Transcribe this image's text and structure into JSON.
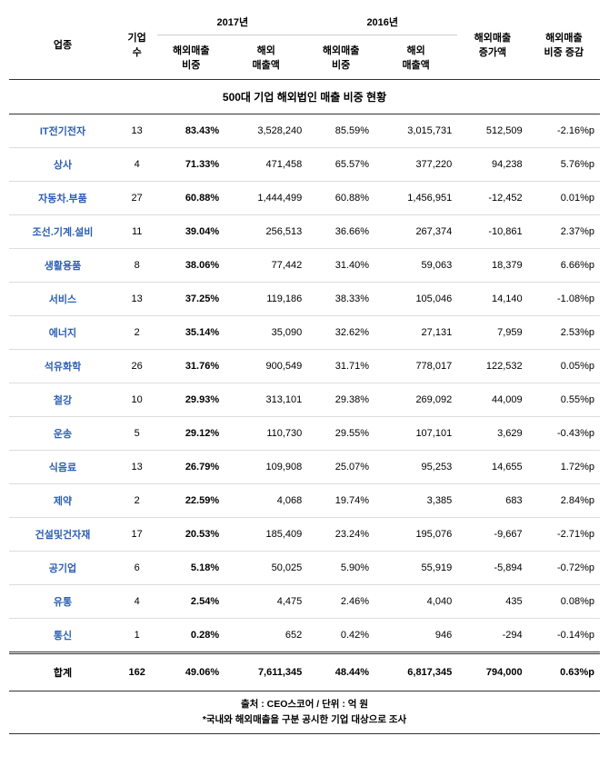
{
  "title": "500대 기업 해외법인 매출 비중 현황",
  "headers": {
    "industry": "업종",
    "count": "기업\n수",
    "y2017": "2017년",
    "y2016": "2016년",
    "overseas_ratio": "해외매출\n비중",
    "overseas_amount": "해외\n매출액",
    "increase": "해외매출\n증가액",
    "ratio_change": "해외매출\n비중 증감"
  },
  "rows": [
    {
      "industry": "IT전기전자",
      "count": "13",
      "r2017": "83.43%",
      "a2017": "3,528,240",
      "r2016": "85.59%",
      "a2016": "3,015,731",
      "inc": "512,509",
      "chg": "-2.16%p"
    },
    {
      "industry": "상사",
      "count": "4",
      "r2017": "71.33%",
      "a2017": "471,458",
      "r2016": "65.57%",
      "a2016": "377,220",
      "inc": "94,238",
      "chg": "5.76%p"
    },
    {
      "industry": "자동차.부품",
      "count": "27",
      "r2017": "60.88%",
      "a2017": "1,444,499",
      "r2016": "60.88%",
      "a2016": "1,456,951",
      "inc": "-12,452",
      "chg": "0.01%p"
    },
    {
      "industry": "조선.기계.설비",
      "count": "11",
      "r2017": "39.04%",
      "a2017": "256,513",
      "r2016": "36.66%",
      "a2016": "267,374",
      "inc": "-10,861",
      "chg": "2.37%p"
    },
    {
      "industry": "생활용품",
      "count": "8",
      "r2017": "38.06%",
      "a2017": "77,442",
      "r2016": "31.40%",
      "a2016": "59,063",
      "inc": "18,379",
      "chg": "6.66%p"
    },
    {
      "industry": "서비스",
      "count": "13",
      "r2017": "37.25%",
      "a2017": "119,186",
      "r2016": "38.33%",
      "a2016": "105,046",
      "inc": "14,140",
      "chg": "-1.08%p"
    },
    {
      "industry": "에너지",
      "count": "2",
      "r2017": "35.14%",
      "a2017": "35,090",
      "r2016": "32.62%",
      "a2016": "27,131",
      "inc": "7,959",
      "chg": "2.53%p"
    },
    {
      "industry": "석유화학",
      "count": "26",
      "r2017": "31.76%",
      "a2017": "900,549",
      "r2016": "31.71%",
      "a2016": "778,017",
      "inc": "122,532",
      "chg": "0.05%p"
    },
    {
      "industry": "철강",
      "count": "10",
      "r2017": "29.93%",
      "a2017": "313,101",
      "r2016": "29.38%",
      "a2016": "269,092",
      "inc": "44,009",
      "chg": "0.55%p"
    },
    {
      "industry": "운송",
      "count": "5",
      "r2017": "29.12%",
      "a2017": "110,730",
      "r2016": "29.55%",
      "a2016": "107,101",
      "inc": "3,629",
      "chg": "-0.43%p"
    },
    {
      "industry": "식음료",
      "count": "13",
      "r2017": "26.79%",
      "a2017": "109,908",
      "r2016": "25.07%",
      "a2016": "95,253",
      "inc": "14,655",
      "chg": "1.72%p"
    },
    {
      "industry": "제약",
      "count": "2",
      "r2017": "22.59%",
      "a2017": "4,068",
      "r2016": "19.74%",
      "a2016": "3,385",
      "inc": "683",
      "chg": "2.84%p"
    },
    {
      "industry": "건설및건자재",
      "count": "17",
      "r2017": "20.53%",
      "a2017": "185,409",
      "r2016": "23.24%",
      "a2016": "195,076",
      "inc": "-9,667",
      "chg": "-2.71%p"
    },
    {
      "industry": "공기업",
      "count": "6",
      "r2017": "5.18%",
      "a2017": "50,025",
      "r2016": "5.90%",
      "a2016": "55,919",
      "inc": "-5,894",
      "chg": "-0.72%p"
    },
    {
      "industry": "유통",
      "count": "4",
      "r2017": "2.54%",
      "a2017": "4,475",
      "r2016": "2.46%",
      "a2016": "4,040",
      "inc": "435",
      "chg": "0.08%p"
    },
    {
      "industry": "통신",
      "count": "1",
      "r2017": "0.28%",
      "a2017": "652",
      "r2016": "0.42%",
      "a2016": "946",
      "inc": "-294",
      "chg": "-0.14%p"
    }
  ],
  "total": {
    "industry": "합계",
    "count": "162",
    "r2017": "49.06%",
    "a2017": "7,611,345",
    "r2016": "48.44%",
    "a2016": "6,817,345",
    "inc": "794,000",
    "chg": "0.63%p"
  },
  "footer1": "출처 : CEO스코어 / 단위 : 억 원",
  "footer2": "*국내와 해외매출을 구분 공시한 기업 대상으로 조사",
  "colors": {
    "industry_text": "#2b5fb3",
    "border": "#333333",
    "row_border": "#dddddd"
  }
}
